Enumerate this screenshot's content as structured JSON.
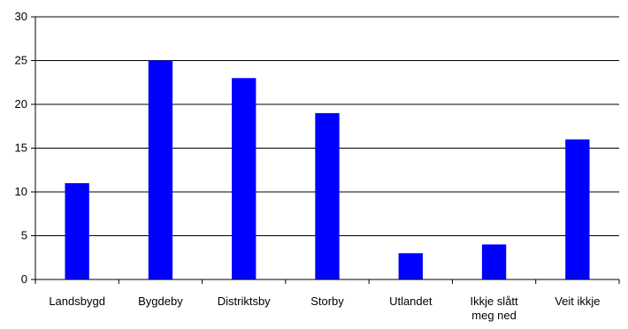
{
  "chart_data": {
    "type": "bar",
    "title": "",
    "xlabel": "",
    "ylabel": "",
    "categories": [
      "Landsbygd",
      "Bygdeby",
      "Distriktsby",
      "Storby",
      "Utlandet",
      "Ikkje slått meg ned",
      "Veit ikkje"
    ],
    "category_lines": [
      [
        "Landsbygd"
      ],
      [
        "Bygdeby"
      ],
      [
        "Distriktsby"
      ],
      [
        "Storby"
      ],
      [
        "Utlandet"
      ],
      [
        "Ikkje slått",
        "meg ned"
      ],
      [
        "Veit ikkje"
      ]
    ],
    "values": [
      11,
      25,
      23,
      19,
      3,
      4,
      16
    ],
    "ylim": [
      0,
      30
    ],
    "yticks": [
      0,
      5,
      10,
      15,
      20,
      25,
      30
    ],
    "grid": true,
    "legend": "none",
    "colors": {
      "bar": "#0000ff",
      "grid": "#000000",
      "axis": "#000000"
    }
  }
}
